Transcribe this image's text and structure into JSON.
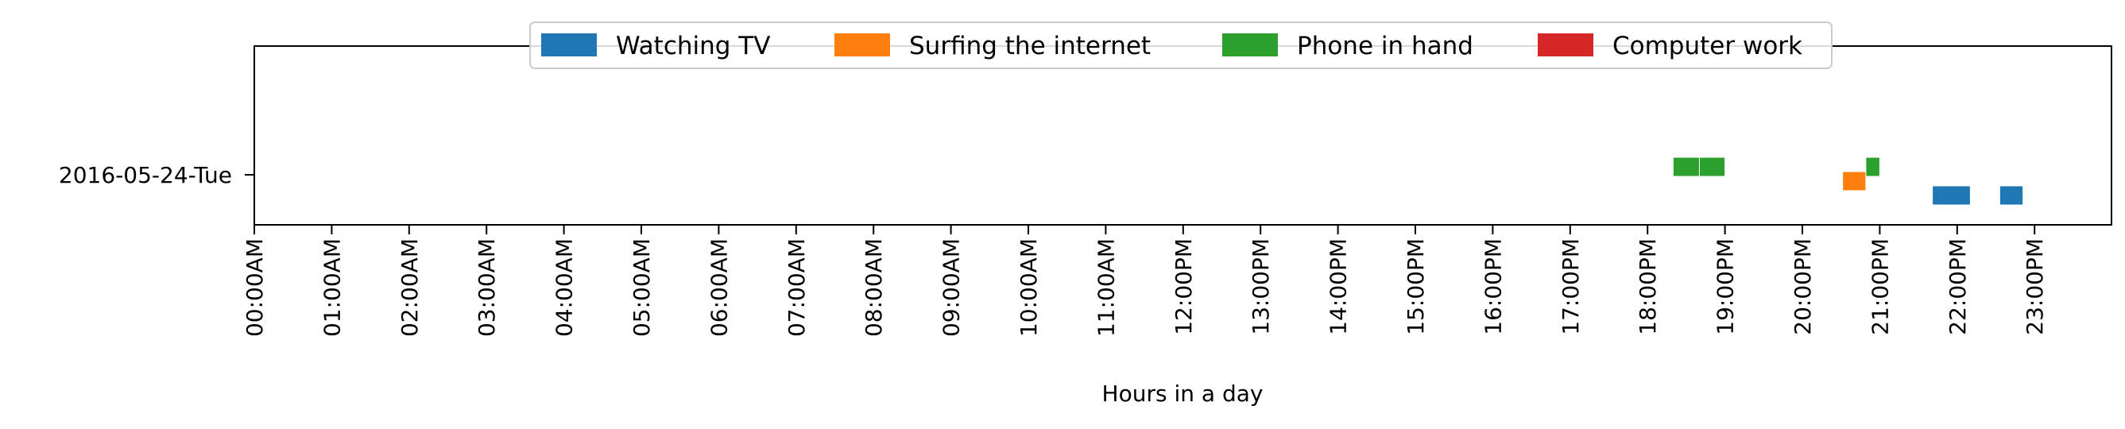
{
  "chart_data": {
    "type": "timeline",
    "xlabel": "Hours in a day",
    "xlim": [
      0,
      24
    ],
    "x_tick_labels": [
      "00:00AM",
      "01:00AM",
      "02:00AM",
      "03:00AM",
      "04:00AM",
      "05:00AM",
      "06:00AM",
      "07:00AM",
      "08:00AM",
      "09:00AM",
      "10:00AM",
      "11:00AM",
      "12:00PM",
      "13:00PM",
      "14:00PM",
      "15:00PM",
      "16:00PM",
      "17:00PM",
      "18:00PM",
      "19:00PM",
      "20:00PM",
      "21:00PM",
      "22:00PM",
      "23:00PM"
    ],
    "categories": [
      "2016-05-24-Tue"
    ],
    "legend_position": "top-center",
    "grid": false,
    "series": [
      {
        "name": "Watching TV",
        "color": "#1f77b4",
        "intervals": [
          [
            21.68,
            22.17
          ],
          [
            22.55,
            22.85
          ]
        ]
      },
      {
        "name": "Surfing the internet",
        "color": "#ff7f0e",
        "intervals": [
          [
            20.52,
            20.82
          ]
        ]
      },
      {
        "name": "Phone in hand",
        "color": "#2ca02c",
        "intervals": [
          [
            18.33,
            18.67
          ],
          [
            18.67,
            19.0
          ],
          [
            20.82,
            21.0
          ]
        ]
      },
      {
        "name": "Computer work",
        "color": "#d62728",
        "intervals": []
      }
    ]
  }
}
